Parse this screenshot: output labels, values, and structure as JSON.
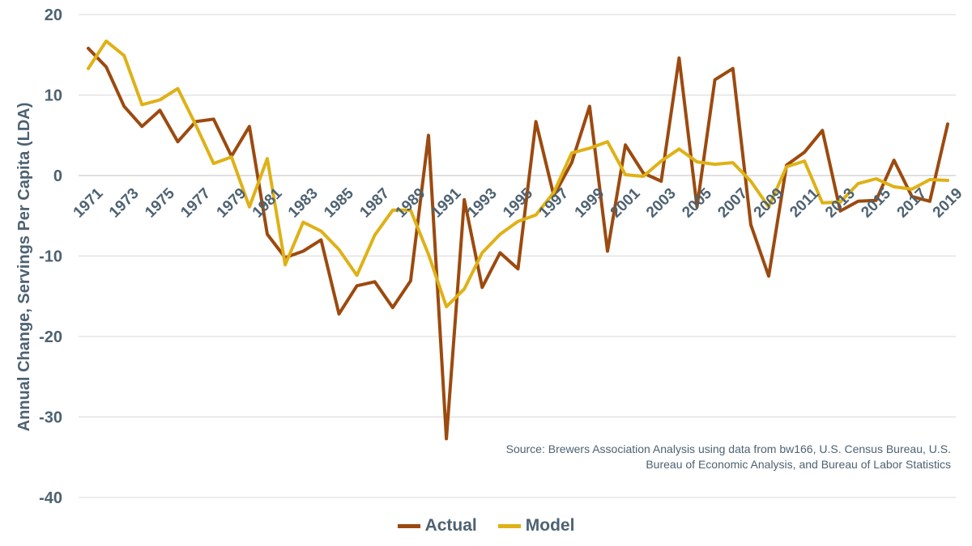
{
  "chart_data": {
    "type": "line",
    "ylabel": "Annual Change, Servings Per Capita (LDA)",
    "ylim": [
      -40,
      20
    ],
    "yticks": [
      20,
      10,
      0,
      -10,
      -20,
      -30,
      -40
    ],
    "grid": true,
    "legend_position": "bottom",
    "x": [
      1971,
      1972,
      1973,
      1974,
      1975,
      1976,
      1977,
      1978,
      1979,
      1980,
      1981,
      1982,
      1983,
      1984,
      1985,
      1986,
      1987,
      1988,
      1989,
      1990,
      1991,
      1992,
      1993,
      1994,
      1995,
      1996,
      1997,
      1998,
      1999,
      2000,
      2001,
      2002,
      2003,
      2004,
      2005,
      2006,
      2007,
      2008,
      2009,
      2010,
      2011,
      2012,
      2013,
      2014,
      2015,
      2016,
      2017,
      2018,
      2019
    ],
    "xtick_labels": [
      "1971",
      "1973",
      "1975",
      "1977",
      "1979",
      "1981",
      "1983",
      "1985",
      "1987",
      "1989",
      "1991",
      "1993",
      "1995",
      "1997",
      "1999",
      "2001",
      "2003",
      "2005",
      "2007",
      "2009",
      "2011",
      "2013",
      "2015",
      "2017",
      "2019"
    ],
    "series": [
      {
        "name": "Actual",
        "color": "#9c4a0f",
        "values": [
          15.8,
          13.5,
          8.6,
          6.1,
          8.1,
          4.2,
          6.7,
          7.0,
          2.4,
          6.1,
          -7.3,
          -10.2,
          -9.4,
          -8.0,
          -17.2,
          -13.7,
          -13.2,
          -16.4,
          -13.1,
          5.0,
          -32.7,
          -3.0,
          -13.9,
          -9.6,
          -11.6,
          6.7,
          -2.5,
          1.6,
          8.6,
          -9.4,
          3.8,
          0.3,
          -0.7,
          14.6,
          -3.9,
          11.9,
          13.3,
          -6.1,
          -12.5,
          1.3,
          2.9,
          5.6,
          -4.4,
          -3.2,
          -3.1,
          1.9,
          -2.6,
          -3.2,
          6.4
        ]
      },
      {
        "name": "Model",
        "color": "#dfb116",
        "values": [
          13.3,
          16.7,
          14.9,
          8.8,
          9.4,
          10.8,
          6.3,
          1.5,
          2.3,
          -3.9,
          2.1,
          -11.1,
          -5.8,
          -6.9,
          -9.2,
          -12.4,
          -7.4,
          -4.3,
          -4.3,
          -9.8,
          -16.3,
          -14.1,
          -9.6,
          -7.3,
          -5.7,
          -4.9,
          -2.1,
          2.8,
          3.4,
          4.2,
          0.1,
          -0.1,
          1.8,
          3.3,
          1.7,
          1.4,
          1.6,
          -0.7,
          -3.9,
          1.1,
          1.8,
          -3.4,
          -3.3,
          -1.0,
          -0.4,
          -1.4,
          -1.7,
          -0.5,
          -0.6
        ]
      }
    ],
    "source_text": "Source: Brewers Association Analysis using data from bw166, U.S. Census Bureau, U.S. Bureau of Economic Analysis, and Bureau of Labor Statistics"
  }
}
